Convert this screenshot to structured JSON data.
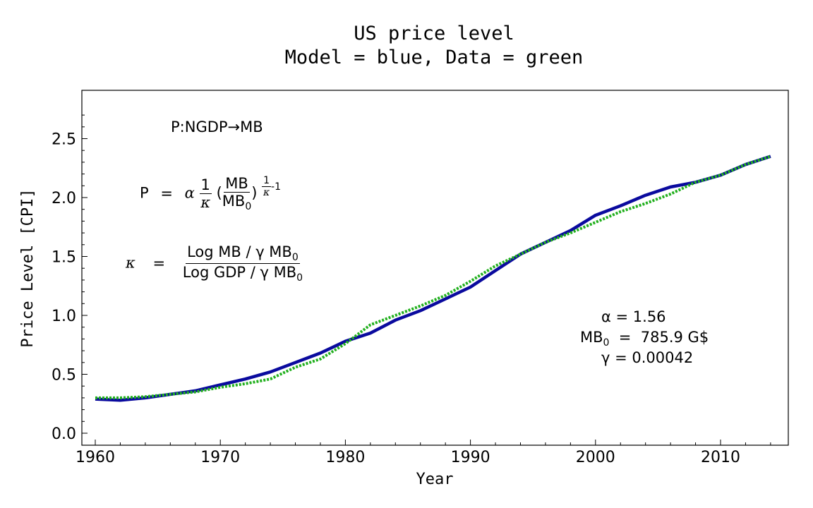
{
  "chart_data": {
    "type": "line",
    "title": "US price level",
    "subtitle": "Model = blue, Data = green",
    "xlabel": "Year",
    "ylabel": "Price Level [CPI]",
    "xlim": [
      1959,
      2015
    ],
    "ylim": [
      -0.1,
      2.9
    ],
    "xticks": [
      1960,
      1970,
      1980,
      1990,
      2000,
      2010
    ],
    "yticks": [
      "0.0",
      "0.5",
      "1.0",
      "1.5",
      "2.0",
      "2.5"
    ],
    "grid": false,
    "x": [
      1960,
      1962,
      1964,
      1966,
      1968,
      1970,
      1972,
      1974,
      1976,
      1978,
      1980,
      1982,
      1984,
      1986,
      1988,
      1990,
      1992,
      1994,
      1996,
      1998,
      2000,
      2002,
      2004,
      2006,
      2008,
      2010,
      2012,
      2014
    ],
    "series": [
      {
        "color": "#0a0a9e",
        "style": "solid",
        "values": [
          0.29,
          0.28,
          0.3,
          0.33,
          0.36,
          0.41,
          0.46,
          0.52,
          0.6,
          0.68,
          0.78,
          0.85,
          0.96,
          1.04,
          1.14,
          1.24,
          1.38,
          1.52,
          1.62,
          1.72,
          1.85,
          1.93,
          2.02,
          2.09,
          2.13,
          2.19,
          2.28,
          2.35
        ]
      },
      {
        "color": "#22b01e",
        "style": "dotted",
        "values": [
          0.3,
          0.3,
          0.31,
          0.33,
          0.35,
          0.39,
          0.42,
          0.46,
          0.56,
          0.63,
          0.76,
          0.92,
          1.0,
          1.08,
          1.17,
          1.29,
          1.42,
          1.52,
          1.62,
          1.7,
          1.79,
          1.88,
          1.95,
          2.03,
          2.13,
          2.19,
          2.28,
          2.35
        ]
      }
    ],
    "annotations": {
      "mapping": "P:NGDP→MB",
      "eq_p_lhs": "P",
      "eq_eq": "=",
      "alpha": "α",
      "one": "1",
      "kappa": "κ",
      "mb": "MB",
      "mb0": "MB",
      "sub0": "0",
      "minus_one": "-1",
      "kappa_num": "Log MB / γ MB",
      "kappa_den": "Log GDP / γ MB",
      "param_alpha": "α  =  1.56",
      "param_mb0": "MB",
      "param_mb0_val": "  =  785.9 G$",
      "param_gamma": "γ  =  0.00042"
    }
  }
}
